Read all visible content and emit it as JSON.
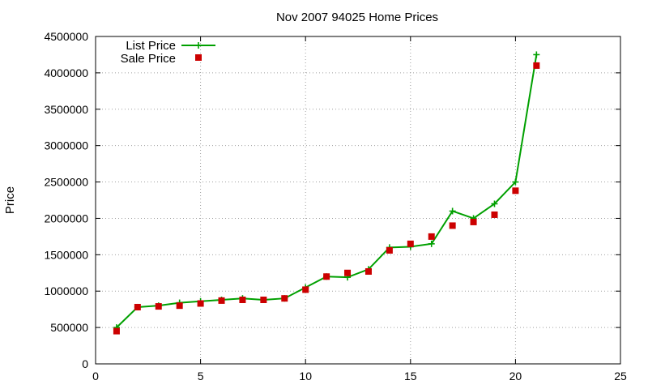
{
  "chart_data": {
    "type": "line",
    "title": "Nov 2007 94025 Home Prices",
    "ylabel": "Price",
    "xlabel": "",
    "xlim": [
      0,
      25
    ],
    "ylim": [
      0,
      4500000
    ],
    "xticks": [
      0,
      5,
      10,
      15,
      20,
      25
    ],
    "yticks": [
      0,
      500000,
      1000000,
      1500000,
      2000000,
      2500000,
      3000000,
      3500000,
      4000000,
      4500000
    ],
    "grid": true,
    "legend_position": "top-left",
    "series": [
      {
        "name": "List Price",
        "style": "line-plus",
        "color": "#00a000",
        "x": [
          1,
          2,
          3,
          4,
          5,
          6,
          7,
          8,
          9,
          10,
          11,
          12,
          13,
          14,
          15,
          16,
          17,
          18,
          19,
          20,
          21
        ],
        "y": [
          500000,
          780000,
          800000,
          840000,
          860000,
          880000,
          900000,
          880000,
          900000,
          1050000,
          1200000,
          1190000,
          1300000,
          1600000,
          1610000,
          1650000,
          2100000,
          2000000,
          2200000,
          2500000,
          4250000
        ]
      },
      {
        "name": "Sale Price",
        "style": "square-markers",
        "color": "#cc0000",
        "x": [
          1,
          2,
          3,
          4,
          5,
          6,
          7,
          8,
          9,
          10,
          11,
          12,
          13,
          14,
          15,
          16,
          17,
          18,
          19,
          20,
          21
        ],
        "y": [
          450000,
          780000,
          790000,
          800000,
          830000,
          870000,
          880000,
          880000,
          900000,
          1020000,
          1200000,
          1250000,
          1270000,
          1560000,
          1650000,
          1750000,
          1900000,
          1950000,
          2050000,
          2380000,
          4100000
        ]
      }
    ]
  }
}
